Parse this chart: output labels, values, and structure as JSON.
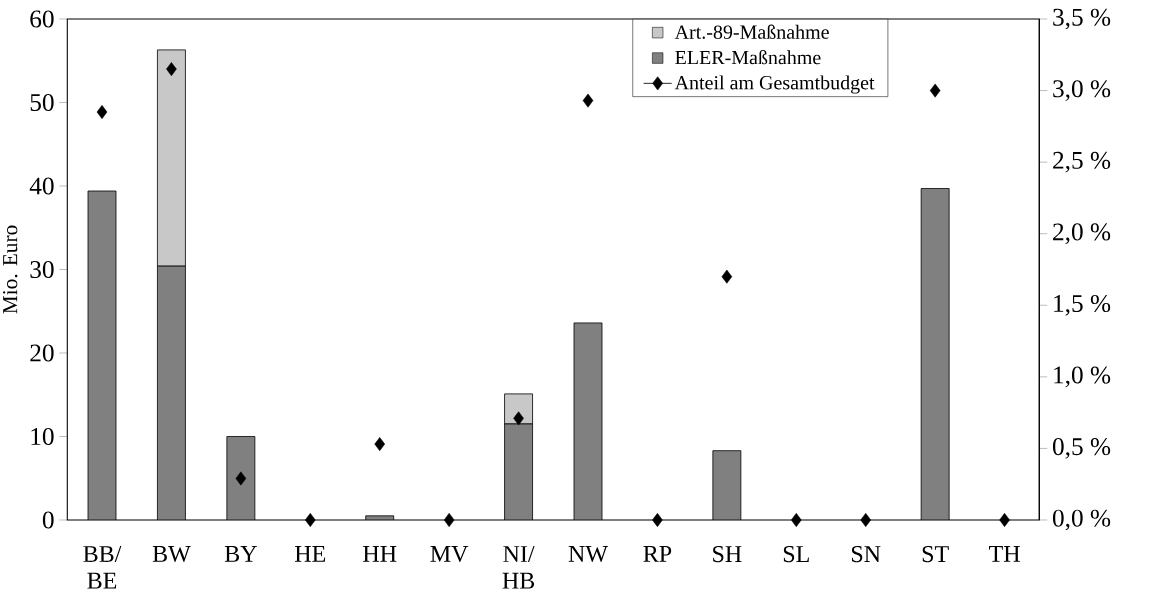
{
  "chart_data": {
    "type": "bar",
    "stacked": true,
    "ylabel": "Mio. Euro",
    "categories": [
      "BB/ BE",
      "BW",
      "BY",
      "HE",
      "HH",
      "MV",
      "NI/ HB",
      "NW",
      "RP",
      "SH",
      "SL",
      "SN",
      "ST",
      "TH"
    ],
    "series": [
      {
        "name": "ELER-Maßnahme",
        "color": "#808080",
        "values": [
          39.4,
          30.4,
          10.0,
          0,
          0.5,
          0,
          11.5,
          23.6,
          0,
          8.3,
          0,
          0,
          39.7,
          0
        ]
      },
      {
        "name": "Art.-89-Maßnahme",
        "color": "#c8c8c8",
        "values": [
          0,
          25.9,
          0,
          0,
          0,
          0,
          3.6,
          0,
          0,
          0,
          0,
          0,
          0,
          0
        ]
      },
      {
        "name": "Anteil am Gesamtbudget",
        "type": "scatter",
        "axis": "y2",
        "color": "#000000",
        "values": [
          2.85,
          3.15,
          0.29,
          0,
          0.53,
          0,
          0.71,
          2.93,
          0,
          1.7,
          0,
          0,
          3.0,
          0
        ]
      }
    ],
    "ylim": [
      0,
      60
    ],
    "yticks": [
      0,
      10,
      20,
      30,
      40,
      50,
      60
    ],
    "y2lim": [
      0,
      3.5
    ],
    "y2ticks": [
      {
        "value": 0,
        "label": "0,0 %"
      },
      {
        "value": 0.5,
        "label": "0,5 %"
      },
      {
        "value": 1.0,
        "label": "1,0 %"
      },
      {
        "value": 1.5,
        "label": "1,5 %"
      },
      {
        "value": 2.0,
        "label": "2,0 %"
      },
      {
        "value": 2.5,
        "label": "2,5 %"
      },
      {
        "value": 3.0,
        "label": "3,0 %"
      },
      {
        "value": 3.5,
        "label": "3,5 %"
      }
    ],
    "legend": "top right",
    "marker": "diamond"
  }
}
